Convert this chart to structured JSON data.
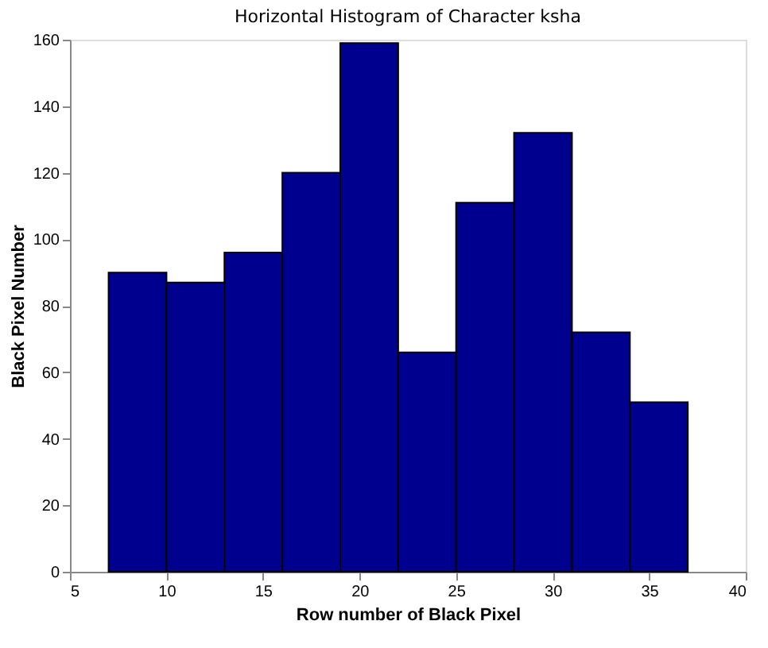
{
  "chart_data": {
    "type": "histogram",
    "title": "Horizontal Histogram of Character  ksha",
    "xlabel": "Row number of Black Pixel",
    "ylabel": "Black Pixel Number",
    "bins": [
      7,
      10,
      13,
      16,
      19,
      22,
      25,
      28,
      31,
      34,
      37
    ],
    "values": [
      90,
      87,
      96,
      120,
      159,
      66,
      111,
      132,
      72,
      51
    ],
    "color": "#00008f",
    "xlim": [
      5,
      40
    ],
    "xticks": [
      5,
      10,
      15,
      20,
      25,
      30,
      35,
      40
    ],
    "ylim": [
      0,
      160
    ],
    "yticks": [
      0,
      20,
      40,
      60,
      80,
      100,
      120,
      140,
      160
    ],
    "grid": false
  }
}
